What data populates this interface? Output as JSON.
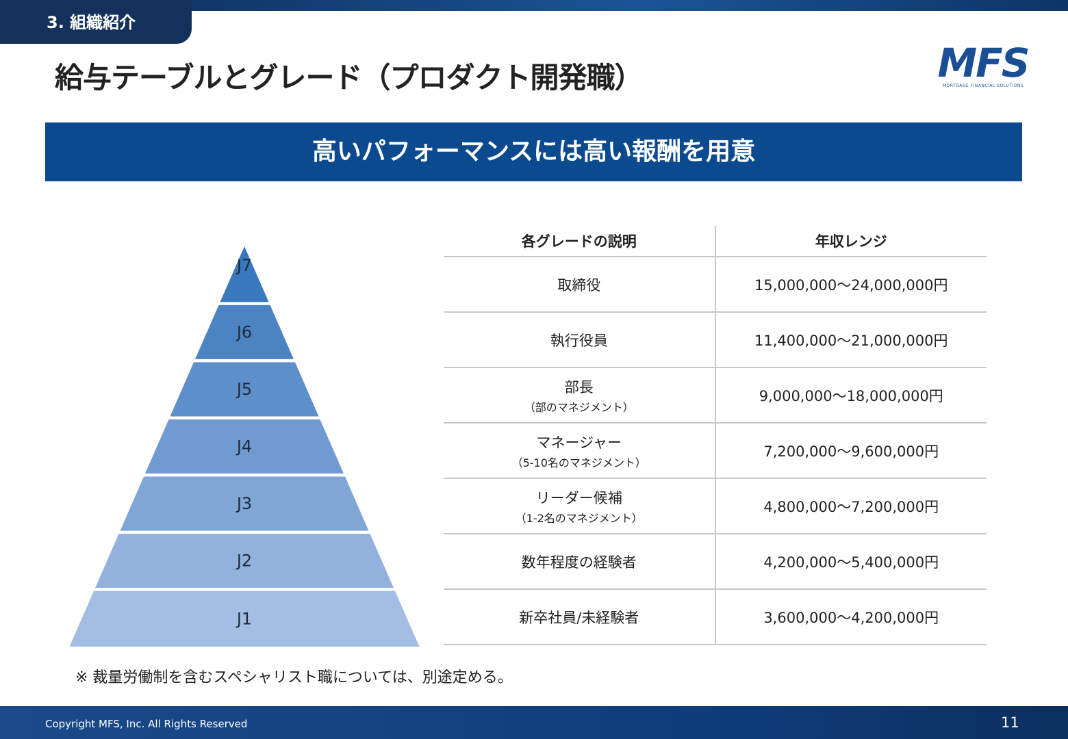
{
  "section": "3. 組織紹介",
  "title": "給与テーブルとグレード（プロダクト開発職）",
  "logo": {
    "name": "MFS",
    "tagline": "MORTGAGE FINANCIAL SOLUTIONS"
  },
  "banner": "高いパフォーマンスには高い報酬を用意",
  "pyramid": [
    "J7",
    "J6",
    "J5",
    "J4",
    "J3",
    "J2",
    "J1"
  ],
  "table": {
    "headers": [
      "各グレードの説明",
      "年収レンジ"
    ],
    "rows": [
      {
        "grade": "取締役",
        "salary": "15,000,000～24,000,000円"
      },
      {
        "grade": "執行役員",
        "salary": "11,400,000～21,000,000円"
      },
      {
        "grade": "部長",
        "note": "（部のマネジメント）",
        "salary": "9,000,000～18,000,000円"
      },
      {
        "grade": "マネージャー",
        "note": "（5-10名のマネジメント）",
        "salary": "7,200,000～9,600,000円"
      },
      {
        "grade": "リーダー候補",
        "note": "（1-2名のマネジメント）",
        "salary": "4,800,000～7,200,000円"
      },
      {
        "grade": "数年程度の経験者",
        "salary": "4,200,000～5,400,000円"
      },
      {
        "grade": "新卒社員/未経験者",
        "salary": "3,600,000～4,200,000円"
      }
    ]
  },
  "footnote": "※ 裁量労働制を含むスペシャリスト職については、別途定める。",
  "footer": {
    "copyright": "Copyright MFS, Inc. All Rights Reserved",
    "page": "11"
  }
}
